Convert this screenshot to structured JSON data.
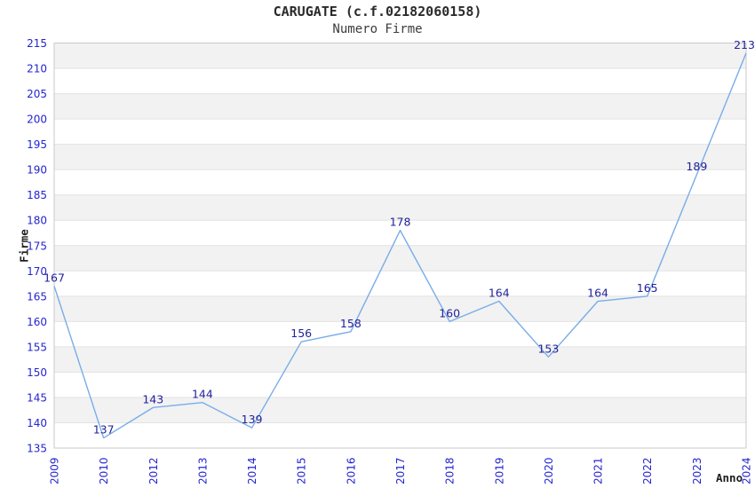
{
  "chart_data": {
    "type": "line",
    "title": "CARUGATE (c.f.02182060158)",
    "subtitle": "Numero Firme",
    "xlabel": "Anno",
    "ylabel": "Firme",
    "categories": [
      "2009",
      "2010",
      "2012",
      "2013",
      "2014",
      "2015",
      "2016",
      "2017",
      "2018",
      "2019",
      "2020",
      "2021",
      "2022",
      "2023",
      "2024"
    ],
    "values": [
      167,
      137,
      143,
      144,
      139,
      156,
      158,
      178,
      160,
      164,
      153,
      164,
      165,
      189,
      213
    ],
    "ylim": [
      135,
      215
    ],
    "ytick_step": 5,
    "grid": "horizontal",
    "legend_position": "none",
    "band_fill_alternating": true,
    "colors": {
      "line": "#78ade8",
      "tick_label": "#2424d0",
      "data_label": "#22229b",
      "band_shaded": "#f2f2f2",
      "band_plain": "#ffffff",
      "gridline": "#e2e2e2",
      "plot_border": "#c9c9c9",
      "title": "#2b2b2b",
      "subtitle": "#3c3c3c",
      "axis_title": "#1e1e1e"
    }
  }
}
